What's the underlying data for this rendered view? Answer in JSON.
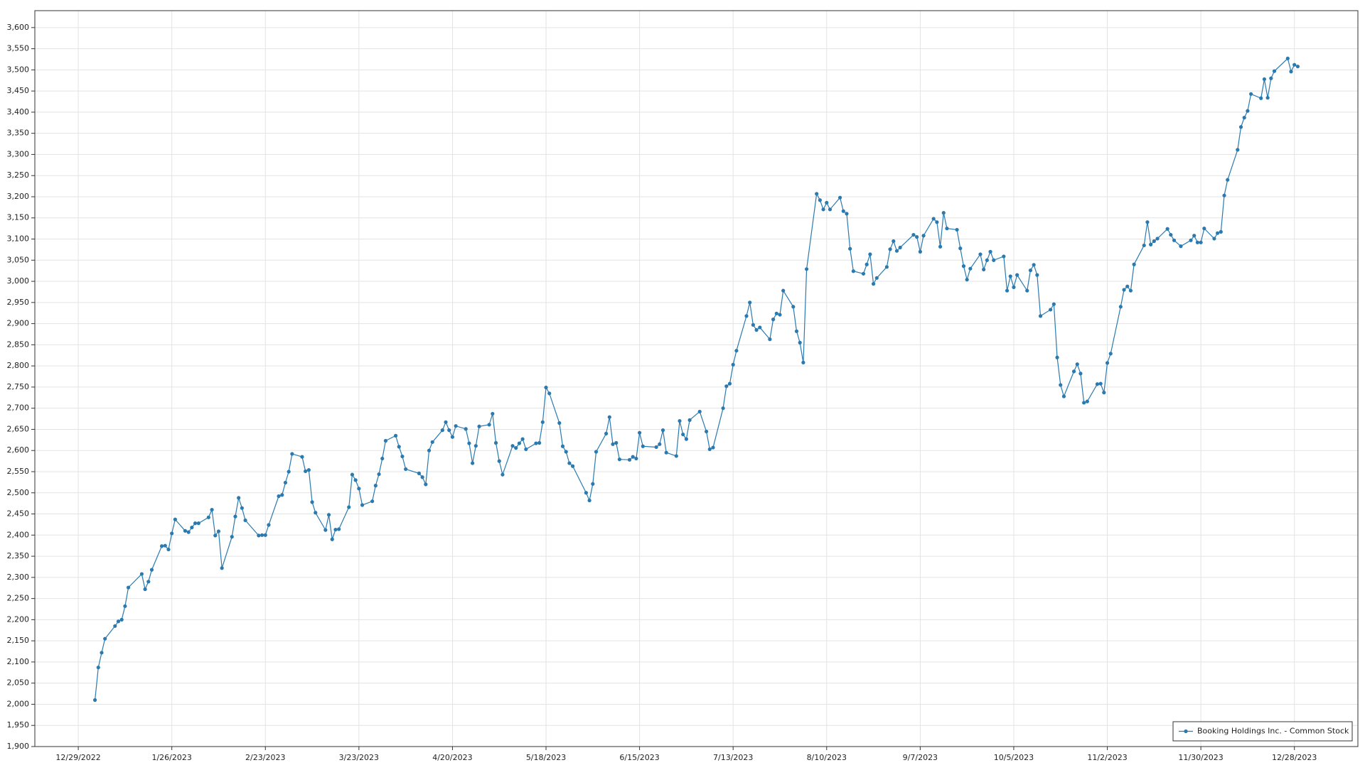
{
  "chart_data": {
    "type": "line",
    "x": [
      "1/3/2023",
      "1/4/2023",
      "1/5/2023",
      "1/6/2023",
      "1/9/2023",
      "1/10/2023",
      "1/11/2023",
      "1/12/2023",
      "1/13/2023",
      "1/17/2023",
      "1/18/2023",
      "1/19/2023",
      "1/20/2023",
      "1/23/2023",
      "1/24/2023",
      "1/25/2023",
      "1/26/2023",
      "1/27/2023",
      "1/30/2023",
      "1/31/2023",
      "2/1/2023",
      "2/2/2023",
      "2/3/2023",
      "2/6/2023",
      "2/7/2023",
      "2/8/2023",
      "2/9/2023",
      "2/10/2023",
      "2/13/2023",
      "2/14/2023",
      "2/15/2023",
      "2/16/2023",
      "2/17/2023",
      "2/21/2023",
      "2/22/2023",
      "2/23/2023",
      "2/24/2023",
      "2/27/2023",
      "2/28/2023",
      "3/1/2023",
      "3/2/2023",
      "3/3/2023",
      "3/6/2023",
      "3/7/2023",
      "3/8/2023",
      "3/9/2023",
      "3/10/2023",
      "3/13/2023",
      "3/14/2023",
      "3/15/2023",
      "3/16/2023",
      "3/17/2023",
      "3/20/2023",
      "3/21/2023",
      "3/22/2023",
      "3/23/2023",
      "3/24/2023",
      "3/27/2023",
      "3/28/2023",
      "3/29/2023",
      "3/30/2023",
      "3/31/2023",
      "4/3/2023",
      "4/4/2023",
      "4/5/2023",
      "4/6/2023",
      "4/10/2023",
      "4/11/2023",
      "4/12/2023",
      "4/13/2023",
      "4/14/2023",
      "4/17/2023",
      "4/18/2023",
      "4/19/2023",
      "4/20/2023",
      "4/21/2023",
      "4/24/2023",
      "4/25/2023",
      "4/26/2023",
      "4/27/2023",
      "4/28/2023",
      "5/1/2023",
      "5/2/2023",
      "5/3/2023",
      "5/4/2023",
      "5/5/2023",
      "5/8/2023",
      "5/9/2023",
      "5/10/2023",
      "5/11/2023",
      "5/12/2023",
      "5/15/2023",
      "5/16/2023",
      "5/17/2023",
      "5/18/2023",
      "5/19/2023",
      "5/22/2023",
      "5/23/2023",
      "5/24/2023",
      "5/25/2023",
      "5/26/2023",
      "5/30/2023",
      "5/31/2023",
      "6/1/2023",
      "6/2/2023",
      "6/5/2023",
      "6/6/2023",
      "6/7/2023",
      "6/8/2023",
      "6/9/2023",
      "6/12/2023",
      "6/13/2023",
      "6/14/2023",
      "6/15/2023",
      "6/16/2023",
      "6/20/2023",
      "6/21/2023",
      "6/22/2023",
      "6/23/2023",
      "6/26/2023",
      "6/27/2023",
      "6/28/2023",
      "6/29/2023",
      "6/30/2023",
      "7/3/2023",
      "7/5/2023",
      "7/6/2023",
      "7/7/2023",
      "7/10/2023",
      "7/11/2023",
      "7/12/2023",
      "7/13/2023",
      "7/14/2023",
      "7/17/2023",
      "7/18/2023",
      "7/19/2023",
      "7/20/2023",
      "7/21/2023",
      "7/24/2023",
      "7/25/2023",
      "7/26/2023",
      "7/27/2023",
      "7/28/2023",
      "7/31/2023",
      "8/1/2023",
      "8/2/2023",
      "8/3/2023",
      "8/4/2023",
      "8/7/2023",
      "8/8/2023",
      "8/9/2023",
      "8/10/2023",
      "8/11/2023",
      "8/14/2023",
      "8/15/2023",
      "8/16/2023",
      "8/17/2023",
      "8/18/2023",
      "8/21/2023",
      "8/22/2023",
      "8/23/2023",
      "8/24/2023",
      "8/25/2023",
      "8/28/2023",
      "8/29/2023",
      "8/30/2023",
      "8/31/2023",
      "9/1/2023",
      "9/5/2023",
      "9/6/2023",
      "9/7/2023",
      "9/8/2023",
      "9/11/2023",
      "9/12/2023",
      "9/13/2023",
      "9/14/2023",
      "9/15/2023",
      "9/18/2023",
      "9/19/2023",
      "9/20/2023",
      "9/21/2023",
      "9/22/2023",
      "9/25/2023",
      "9/26/2023",
      "9/27/2023",
      "9/28/2023",
      "9/29/2023",
      "10/2/2023",
      "10/3/2023",
      "10/4/2023",
      "10/5/2023",
      "10/6/2023",
      "10/9/2023",
      "10/10/2023",
      "10/11/2023",
      "10/12/2023",
      "10/13/2023",
      "10/16/2023",
      "10/17/2023",
      "10/18/2023",
      "10/19/2023",
      "10/20/2023",
      "10/23/2023",
      "10/24/2023",
      "10/25/2023",
      "10/26/2023",
      "10/27/2023",
      "10/30/2023",
      "10/31/2023",
      "11/1/2023",
      "11/2/2023",
      "11/3/2023",
      "11/6/2023",
      "11/7/2023",
      "11/8/2023",
      "11/9/2023",
      "11/10/2023",
      "11/13/2023",
      "11/14/2023",
      "11/15/2023",
      "11/16/2023",
      "11/17/2023",
      "11/20/2023",
      "11/21/2023",
      "11/22/2023",
      "11/24/2023",
      "11/27/2023",
      "11/28/2023",
      "11/29/2023",
      "11/30/2023",
      "12/1/2023",
      "12/4/2023",
      "12/5/2023",
      "12/6/2023",
      "12/7/2023",
      "12/8/2023",
      "12/11/2023",
      "12/12/2023",
      "12/13/2023",
      "12/14/2023",
      "12/15/2023",
      "12/18/2023",
      "12/19/2023",
      "12/20/2023",
      "12/21/2023",
      "12/22/2023",
      "12/26/2023",
      "12/27/2023",
      "12/28/2023",
      "12/29/2023"
    ],
    "series": [
      {
        "name": "Booking Holdings Inc. - Common Stock",
        "color": "#2a7ab0",
        "values": [
          2010,
          2087,
          2122,
          2155,
          2185,
          2196,
          2200,
          2232,
          2276,
          2308,
          2272,
          2290,
          2318,
          2374,
          2375,
          2366,
          2404,
          2437,
          2410,
          2407,
          2418,
          2428,
          2428,
          2442,
          2460,
          2399,
          2409,
          2322,
          2396,
          2444,
          2488,
          2464,
          2435,
          2399,
          2400,
          2400,
          2424,
          2492,
          2495,
          2524,
          2550,
          2592,
          2585,
          2551,
          2554,
          2478,
          2453,
          2412,
          2448,
          2390,
          2413,
          2414,
          2466,
          2543,
          2530,
          2510,
          2471,
          2480,
          2517,
          2544,
          2581,
          2623,
          2635,
          2609,
          2586,
          2556,
          2546,
          2537,
          2520,
          2600,
          2620,
          2648,
          2667,
          2648,
          2632,
          2658,
          2651,
          2617,
          2570,
          2611,
          2657,
          2661,
          2687,
          2618,
          2575,
          2543,
          2611,
          2606,
          2617,
          2627,
          2603,
          2617,
          2618,
          2667,
          2749,
          2735,
          2665,
          2610,
          2597,
          2570,
          2563,
          2500,
          2482,
          2521,
          2597,
          2640,
          2679,
          2615,
          2618,
          2579,
          2578,
          2585,
          2581,
          2642,
          2610,
          2608,
          2615,
          2648,
          2595,
          2587,
          2670,
          2638,
          2627,
          2672,
          2692,
          2645,
          2603,
          2607,
          2700,
          2752,
          2758,
          2803,
          2836,
          2918,
          2950,
          2897,
          2885,
          2891,
          2863,
          2910,
          2924,
          2921,
          2978,
          2940,
          2882,
          2855,
          2808,
          3029,
          3207,
          3192,
          3170,
          3186,
          3170,
          3198,
          3166,
          3160,
          3077,
          3024,
          3018,
          3040,
          3064,
          2994,
          3008,
          3034,
          3076,
          3095,
          3072,
          3080,
          3110,
          3105,
          3070,
          3108,
          3148,
          3140,
          3082,
          3162,
          3125,
          3122,
          3078,
          3036,
          3004,
          3030,
          3064,
          3028,
          3050,
          3070,
          3050,
          3059,
          2978,
          3012,
          2986,
          3015,
          2978,
          3026,
          3039,
          3015,
          2918,
          2933,
          2946,
          2820,
          2755,
          2728,
          2787,
          2804,
          2782,
          2713,
          2716,
          2757,
          2758,
          2737,
          2807,
          2829,
          2940,
          2980,
          2988,
          2978,
          3040,
          3085,
          3140,
          3087,
          3095,
          3101,
          3124,
          3110,
          3097,
          3083,
          3097,
          3108,
          3092,
          3092,
          3125,
          3101,
          3114,
          3117,
          3203,
          3240,
          3311,
          3365,
          3387,
          3403,
          3443,
          3433,
          3478,
          3434,
          3480,
          3497,
          3527,
          3496,
          3512,
          3508
        ]
      }
    ],
    "xlim": [
      "12/16/2022",
      "1/16/2024"
    ],
    "xticks": [
      "12/29/2022",
      "1/26/2023",
      "2/23/2023",
      "3/23/2023",
      "4/20/2023",
      "5/18/2023",
      "6/15/2023",
      "7/13/2023",
      "8/10/2023",
      "9/7/2023",
      "10/5/2023",
      "11/2/2023",
      "11/30/2023",
      "12/28/2023"
    ],
    "ylim": [
      1900,
      3640
    ],
    "yticks": [
      {
        "value": 1900,
        "label": "1,900"
      },
      {
        "value": 1950,
        "label": "1,950"
      },
      {
        "value": 2000,
        "label": "2,000"
      },
      {
        "value": 2050,
        "label": "2,050"
      },
      {
        "value": 2100,
        "label": "2,100"
      },
      {
        "value": 2150,
        "label": "2,150"
      },
      {
        "value": 2200,
        "label": "2,200"
      },
      {
        "value": 2250,
        "label": "2,250"
      },
      {
        "value": 2300,
        "label": "2,300"
      },
      {
        "value": 2350,
        "label": "2,350"
      },
      {
        "value": 2400,
        "label": "2,400"
      },
      {
        "value": 2450,
        "label": "2,450"
      },
      {
        "value": 2500,
        "label": "2,500"
      },
      {
        "value": 2550,
        "label": "2,550"
      },
      {
        "value": 2600,
        "label": "2,600"
      },
      {
        "value": 2650,
        "label": "2,650"
      },
      {
        "value": 2700,
        "label": "2,700"
      },
      {
        "value": 2750,
        "label": "2,750"
      },
      {
        "value": 2800,
        "label": "2,800"
      },
      {
        "value": 2850,
        "label": "2,850"
      },
      {
        "value": 2900,
        "label": "2,900"
      },
      {
        "value": 2950,
        "label": "2,950"
      },
      {
        "value": 3000,
        "label": "3,000"
      },
      {
        "value": 3050,
        "label": "3,050"
      },
      {
        "value": 3100,
        "label": "3,100"
      },
      {
        "value": 3150,
        "label": "3,150"
      },
      {
        "value": 3200,
        "label": "3,200"
      },
      {
        "value": 3250,
        "label": "3,250"
      },
      {
        "value": 3300,
        "label": "3,300"
      },
      {
        "value": 3350,
        "label": "3,350"
      },
      {
        "value": 3400,
        "label": "3,400"
      },
      {
        "value": 3450,
        "label": "3,450"
      },
      {
        "value": 3500,
        "label": "3,500"
      },
      {
        "value": 3550,
        "label": "3,550"
      },
      {
        "value": 3600,
        "label": "3,600"
      }
    ],
    "grid": true,
    "legend": "bottom-right"
  }
}
